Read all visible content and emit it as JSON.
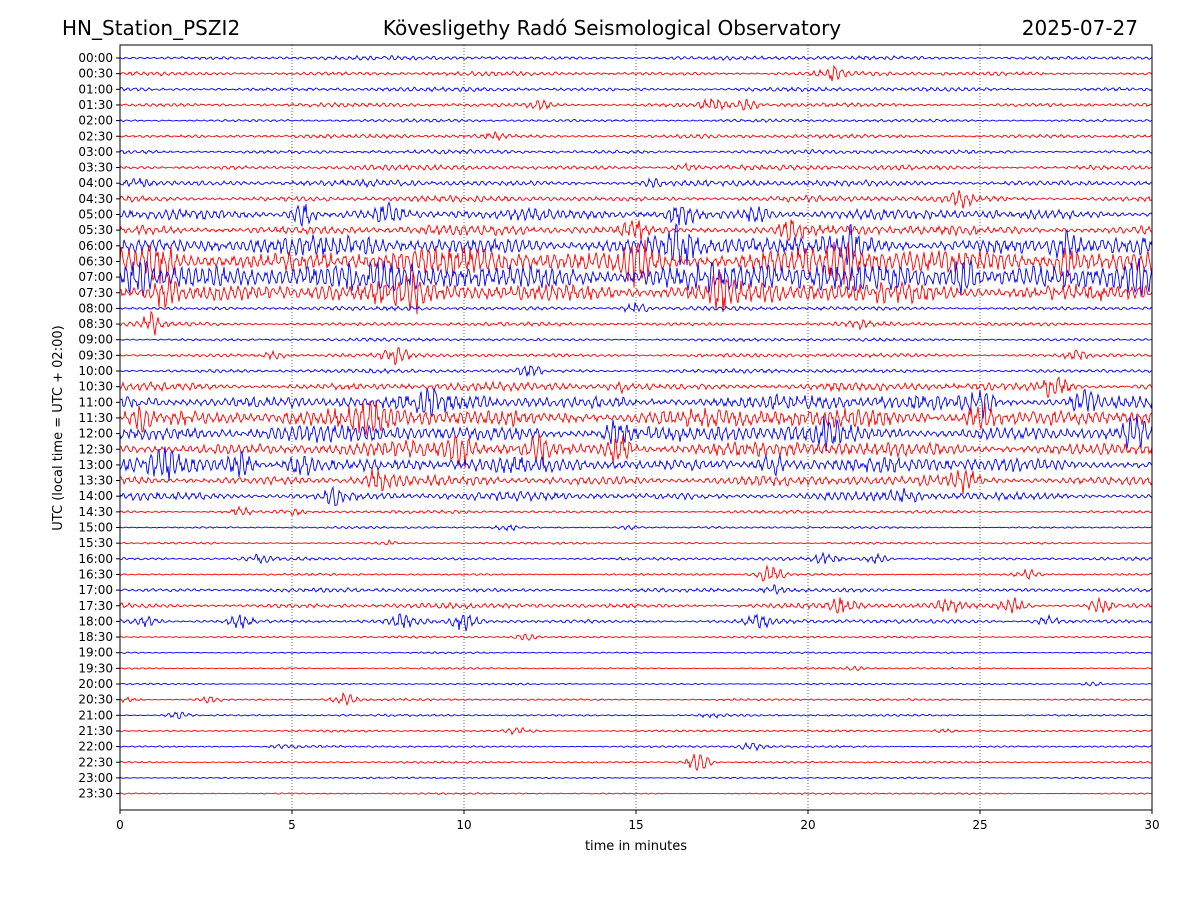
{
  "header": {
    "station": "HN_Station_PSZI2",
    "observatory": "Kövesligethy Radó Seismological Observatory",
    "date": "2025-07-27"
  },
  "chart_data": {
    "type": "line",
    "title": "Kövesligethy Radó Seismological Observatory",
    "xlabel": "time in minutes",
    "ylabel": "UTC (local time = UTC + 02:00)",
    "xlim": [
      0,
      30
    ],
    "x_ticks": [
      "0",
      "5",
      "10",
      "15",
      "20",
      "25",
      "30"
    ],
    "grid": "vertical dotted lines at 5-minute ticks",
    "colors": {
      "even_rows": "#0000ff",
      "odd_rows": "#ff0000"
    },
    "rows": [
      {
        "time": "00:00",
        "amplitude": 2,
        "events": []
      },
      {
        "time": "00:30",
        "amplitude": 2,
        "events": [
          [
            20.7,
            6
          ]
        ]
      },
      {
        "time": "01:00",
        "amplitude": 2,
        "events": []
      },
      {
        "time": "01:30",
        "amplitude": 2,
        "events": [
          [
            12.2,
            4
          ],
          [
            17.2,
            5
          ],
          [
            18.2,
            4
          ]
        ]
      },
      {
        "time": "02:00",
        "amplitude": 1.5,
        "events": []
      },
      {
        "time": "02:30",
        "amplitude": 2,
        "events": [
          [
            10.8,
            3
          ]
        ]
      },
      {
        "time": "03:00",
        "amplitude": 2,
        "events": []
      },
      {
        "time": "03:30",
        "amplitude": 2.5,
        "events": [
          [
            16.5,
            3
          ]
        ]
      },
      {
        "time": "04:00",
        "amplitude": 3,
        "events": [
          [
            0.5,
            5
          ],
          [
            15.5,
            3
          ]
        ]
      },
      {
        "time": "04:30",
        "amplitude": 3,
        "events": [
          [
            24.5,
            7
          ]
        ]
      },
      {
        "time": "05:00",
        "amplitude": 5,
        "events": [
          [
            5.3,
            12
          ],
          [
            7.8,
            10
          ],
          [
            16.3,
            12
          ],
          [
            18.5,
            8
          ]
        ]
      },
      {
        "time": "05:30",
        "amplitude": 5,
        "events": [
          [
            15,
            10
          ],
          [
            19.5,
            8
          ]
        ]
      },
      {
        "time": "06:00",
        "amplitude": 9,
        "events": [
          [
            16.3,
            14
          ],
          [
            21.3,
            16
          ],
          [
            27.5,
            14
          ]
        ]
      },
      {
        "time": "06:30",
        "amplitude": 12,
        "events": [
          [
            1.2,
            18
          ],
          [
            15,
            20
          ],
          [
            21,
            16
          ],
          [
            27.5,
            16
          ]
        ]
      },
      {
        "time": "07:00",
        "amplitude": 14,
        "events": [
          [
            0.5,
            18
          ],
          [
            24.5,
            20
          ],
          [
            29.5,
            16
          ]
        ]
      },
      {
        "time": "07:30",
        "amplitude": 10,
        "events": [
          [
            1.3,
            16
          ],
          [
            8.5,
            14
          ],
          [
            17.5,
            12
          ]
        ]
      },
      {
        "time": "08:00",
        "amplitude": 2,
        "events": [
          [
            15,
            6
          ]
        ]
      },
      {
        "time": "08:30",
        "amplitude": 2,
        "events": [
          [
            0.9,
            10
          ],
          [
            21.5,
            3
          ]
        ]
      },
      {
        "time": "09:00",
        "amplitude": 1.5,
        "events": []
      },
      {
        "time": "09:30",
        "amplitude": 2,
        "events": [
          [
            4.5,
            3
          ],
          [
            8,
            7
          ],
          [
            27.8,
            6
          ]
        ]
      },
      {
        "time": "10:00",
        "amplitude": 2,
        "events": [
          [
            11.9,
            6
          ]
        ]
      },
      {
        "time": "10:30",
        "amplitude": 4,
        "events": [
          [
            14.5,
            4
          ],
          [
            27.2,
            12
          ]
        ]
      },
      {
        "time": "11:00",
        "amplitude": 7,
        "events": [
          [
            9,
            10
          ],
          [
            25,
            12
          ],
          [
            28,
            10
          ]
        ]
      },
      {
        "time": "11:30",
        "amplitude": 9,
        "events": [
          [
            0.5,
            14
          ],
          [
            7.3,
            14
          ],
          [
            25,
            14
          ]
        ]
      },
      {
        "time": "12:00",
        "amplitude": 8,
        "events": [
          [
            14.5,
            14
          ],
          [
            20.5,
            12
          ],
          [
            29.5,
            12
          ]
        ]
      },
      {
        "time": "12:30",
        "amplitude": 7,
        "events": [
          [
            10,
            14
          ],
          [
            12.2,
            14
          ],
          [
            14.5,
            14
          ]
        ]
      },
      {
        "time": "13:00",
        "amplitude": 7,
        "events": [
          [
            1.3,
            12
          ],
          [
            3.5,
            12
          ],
          [
            5.2,
            12
          ],
          [
            19,
            10
          ]
        ]
      },
      {
        "time": "13:30",
        "amplitude": 5,
        "events": [
          [
            7.5,
            10
          ],
          [
            24.5,
            12
          ]
        ]
      },
      {
        "time": "14:00",
        "amplitude": 4,
        "events": [
          [
            6.3,
            8
          ],
          [
            22.8,
            6
          ]
        ]
      },
      {
        "time": "14:30",
        "amplitude": 1.5,
        "events": [
          [
            3.5,
            4
          ],
          [
            5,
            3
          ]
        ]
      },
      {
        "time": "15:00",
        "amplitude": 1,
        "events": [
          [
            11.3,
            3
          ],
          [
            14.8,
            2
          ]
        ]
      },
      {
        "time": "15:30",
        "amplitude": 1,
        "events": [
          [
            7.8,
            2
          ]
        ]
      },
      {
        "time": "16:00",
        "amplitude": 1.5,
        "events": [
          [
            4,
            4
          ],
          [
            20.5,
            6
          ],
          [
            22,
            5
          ]
        ]
      },
      {
        "time": "16:30",
        "amplitude": 1,
        "events": [
          [
            18.9,
            9
          ],
          [
            26.4,
            5
          ]
        ]
      },
      {
        "time": "17:00",
        "amplitude": 2,
        "events": [
          [
            19,
            4
          ]
        ]
      },
      {
        "time": "17:30",
        "amplitude": 2.5,
        "events": [
          [
            21,
            7
          ],
          [
            24.1,
            7
          ],
          [
            26,
            7
          ],
          [
            28.5,
            7
          ]
        ]
      },
      {
        "time": "18:00",
        "amplitude": 2,
        "events": [
          [
            0.8,
            5
          ],
          [
            3.5,
            6
          ],
          [
            8.2,
            6
          ],
          [
            10,
            8
          ],
          [
            18.6,
            7
          ],
          [
            27,
            6
          ]
        ]
      },
      {
        "time": "18:30",
        "amplitude": 1,
        "events": [
          [
            11.8,
            3
          ]
        ]
      },
      {
        "time": "19:00",
        "amplitude": 0.8,
        "events": []
      },
      {
        "time": "19:30",
        "amplitude": 0.8,
        "events": [
          [
            21.3,
            2
          ]
        ]
      },
      {
        "time": "20:00",
        "amplitude": 0.8,
        "events": [
          [
            28.3,
            2
          ]
        ]
      },
      {
        "time": "20:30",
        "amplitude": 1,
        "events": [
          [
            0.2,
            3
          ],
          [
            2.6,
            3
          ],
          [
            6.5,
            6
          ]
        ]
      },
      {
        "time": "21:00",
        "amplitude": 1,
        "events": [
          [
            1.7,
            3
          ],
          [
            17.2,
            2
          ]
        ]
      },
      {
        "time": "21:30",
        "amplitude": 1,
        "events": [
          [
            11.6,
            4
          ],
          [
            24,
            2
          ]
        ]
      },
      {
        "time": "22:00",
        "amplitude": 1,
        "events": [
          [
            4.8,
            2
          ],
          [
            18.4,
            4
          ]
        ]
      },
      {
        "time": "22:30",
        "amplitude": 1,
        "events": [
          [
            16.8,
            9
          ]
        ]
      },
      {
        "time": "23:00",
        "amplitude": 0.8,
        "events": []
      },
      {
        "time": "23:30",
        "amplitude": 0.8,
        "events": []
      }
    ]
  }
}
